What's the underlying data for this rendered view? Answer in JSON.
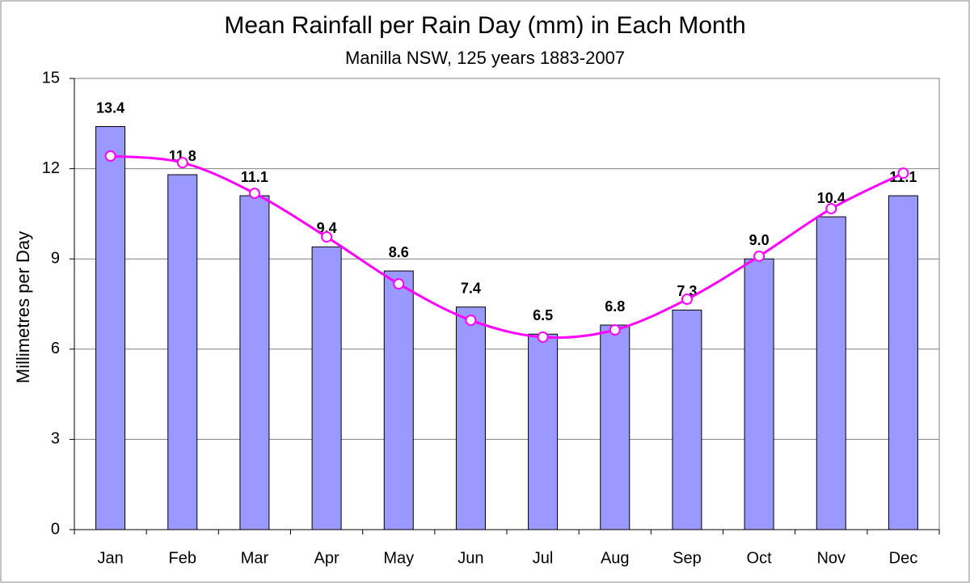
{
  "chart_data": {
    "type": "bar",
    "title": "Mean Rainfall per Rain Day (mm)  in Each Month",
    "subtitle": "Manilla NSW, 125 years 1883-2007",
    "y_label": "Millimetres per Day",
    "categories": [
      "Jan",
      "Feb",
      "Mar",
      "Apr",
      "May",
      "Jun",
      "Jul",
      "Aug",
      "Sep",
      "Oct",
      "Nov",
      "Dec"
    ],
    "series": [
      {
        "type": "bar",
        "color": "#9999ff",
        "values": [
          13.4,
          11.8,
          11.1,
          9.4,
          8.6,
          7.4,
          6.5,
          6.8,
          7.3,
          9,
          10.4,
          11.1
        ],
        "value_labels": [
          "13.4",
          "11.8",
          "11.1",
          "9.4",
          "8.6",
          "7.4",
          "6.5",
          "6.8",
          "7.3",
          "9.0",
          "10.4",
          "11.1"
        ]
      },
      {
        "type": "line",
        "color": "#ff00ff",
        "smooth": true,
        "values": [
          12.42,
          12.2,
          11.18,
          9.73,
          8.17,
          6.96,
          6.4,
          6.64,
          7.66,
          9.09,
          10.67,
          11.85
        ]
      }
    ],
    "ylim": [
      0,
      15
    ],
    "yticks": [
      0,
      3,
      6,
      9,
      12,
      15
    ],
    "grid": true
  }
}
